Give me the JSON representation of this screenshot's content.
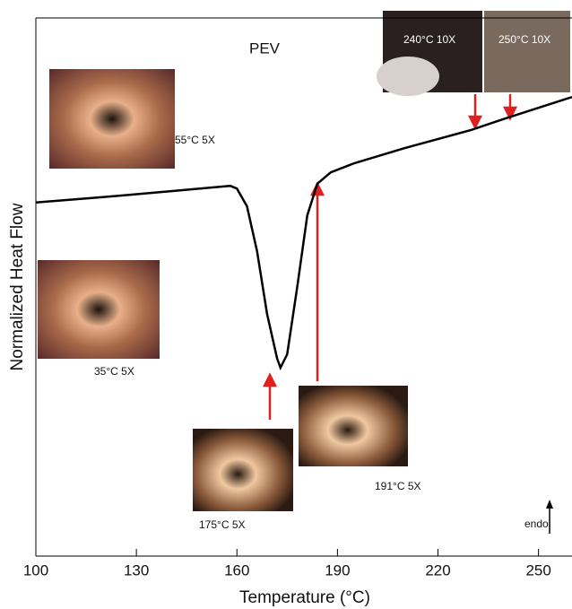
{
  "chart_data": {
    "type": "line",
    "title": "PEV",
    "xlabel": "Temperature (°C)",
    "ylabel": "Normalized Heat Flow",
    "x": [
      100,
      120,
      140,
      158,
      160,
      163,
      166,
      169,
      172,
      173,
      175,
      178,
      181,
      184,
      188,
      195,
      210,
      230,
      240,
      250,
      260
    ],
    "series": [
      {
        "color": "#000000",
        "values": [
          65.7,
          66.7,
          67.8,
          68.8,
          68.3,
          65,
          56.7,
          45,
          36.7,
          35,
          37.5,
          50,
          63.3,
          69.2,
          71.3,
          73,
          75.8,
          79.2,
          81.3,
          83.3,
          85.3
        ]
      }
    ],
    "xlim": [
      100,
      260
    ],
    "xticks": [
      100,
      130,
      160,
      190,
      220,
      250
    ],
    "ylim": [
      0,
      100
    ],
    "grid": false,
    "annotations": [
      "55°C 5X",
      "35°C 5X",
      "175°C 5X",
      "191°C 5X",
      "240°C 10X",
      "250°C 10X",
      "endo"
    ]
  }
}
